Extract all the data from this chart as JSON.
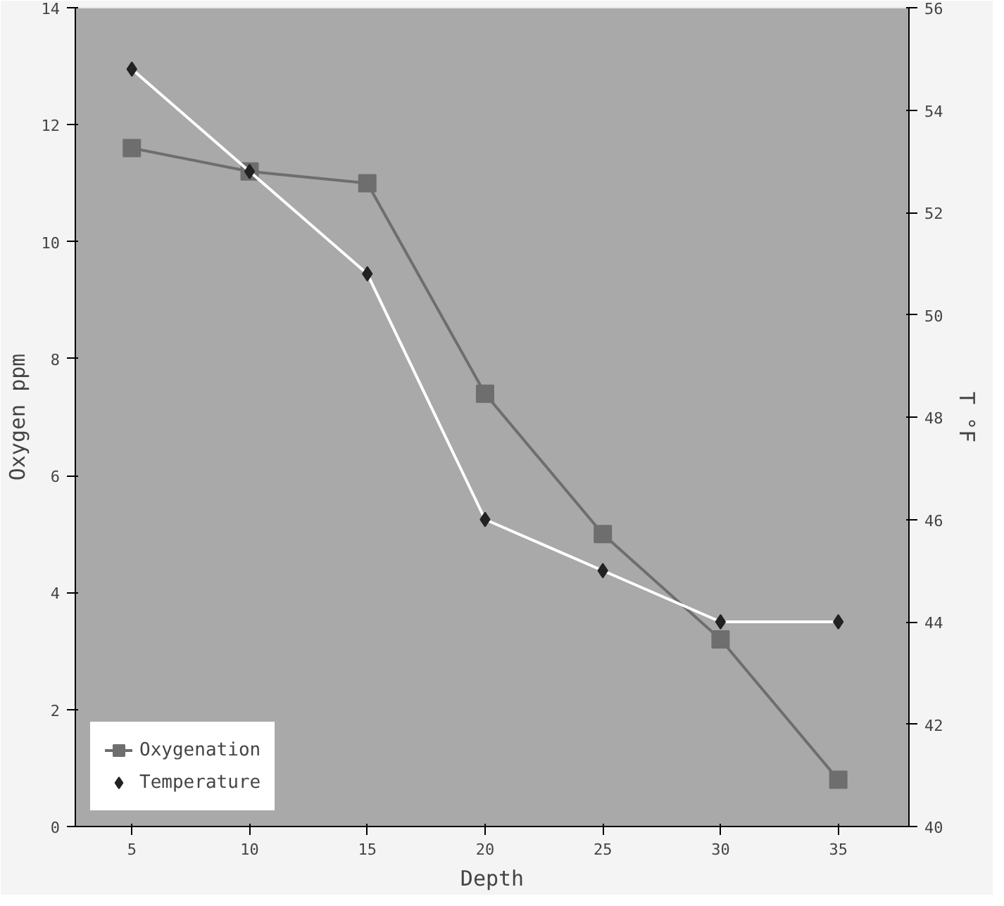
{
  "chart_data": {
    "type": "line",
    "xlabel": "Depth",
    "ylabel": "Oxygen ppm",
    "y2label": "T °F",
    "x": [
      5,
      10,
      15,
      20,
      25,
      30,
      35
    ],
    "xlim": [
      2.6,
      38
    ],
    "xticks": [
      5,
      10,
      15,
      20,
      25,
      30,
      35
    ],
    "ylim": [
      0,
      14
    ],
    "yticks": [
      0,
      2,
      4,
      6,
      8,
      10,
      12,
      14
    ],
    "y2lim": [
      40,
      56
    ],
    "y2ticks": [
      40,
      42,
      44,
      46,
      48,
      50,
      52,
      54,
      56
    ],
    "series": [
      {
        "name": "Oxygenation",
        "color": "#6e6e6e",
        "marker": "square",
        "values": [
          11.6,
          11.2,
          11.0,
          7.4,
          5.0,
          3.2,
          0.8
        ]
      },
      {
        "name": "Temperature",
        "color": "#ffffff",
        "marker": "diamond",
        "axis": "y2",
        "values": [
          54.8,
          52.8,
          50.8,
          46,
          45,
          44,
          44
        ]
      }
    ],
    "grid": false,
    "legend": "bottom left"
  }
}
